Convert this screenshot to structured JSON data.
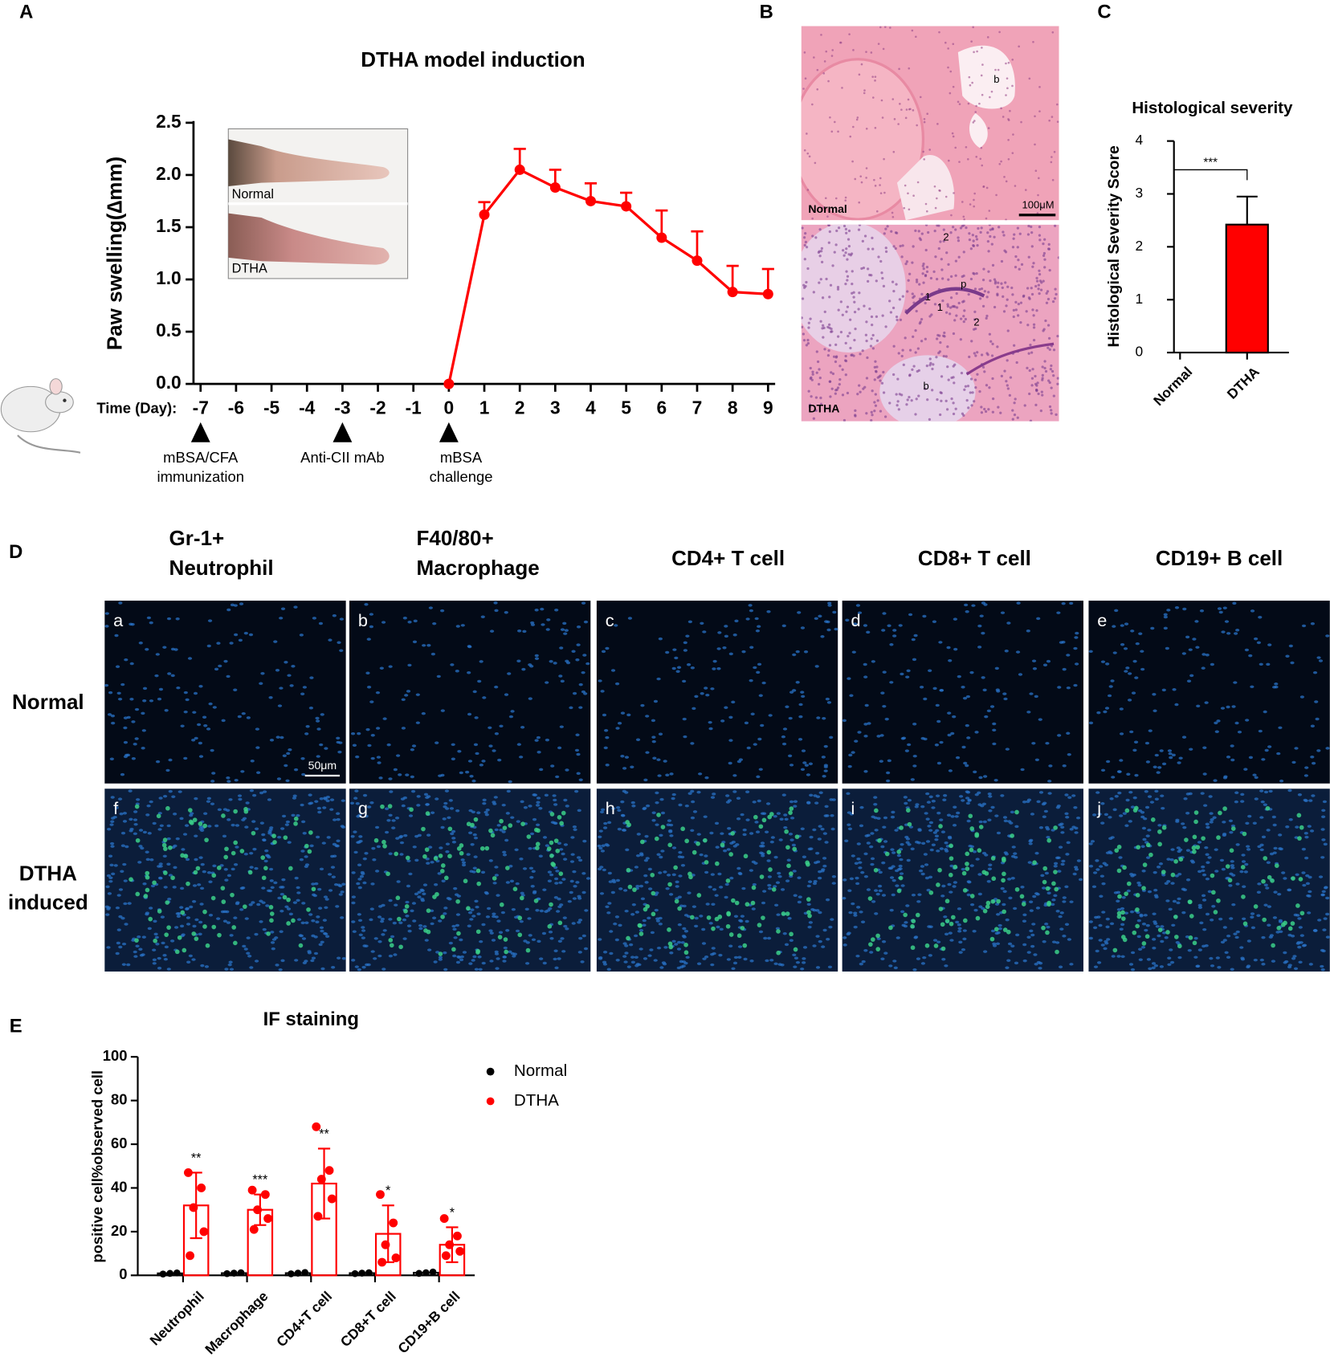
{
  "panels": [
    "A",
    "B",
    "C",
    "D",
    "E"
  ],
  "chart_data": [
    {
      "type": "line",
      "title": "DTHA model induction",
      "ylabel": "Paw swelling(∆mm)",
      "xlabel": "Time (Day):",
      "x": [
        -7,
        -6,
        -5,
        -4,
        -3,
        -2,
        -1,
        0,
        1,
        2,
        3,
        4,
        5,
        6,
        7,
        8,
        9
      ],
      "values": [
        null,
        null,
        null,
        null,
        null,
        null,
        null,
        0,
        1.62,
        2.05,
        1.88,
        1.75,
        1.7,
        1.4,
        1.18,
        0.88,
        0.86
      ],
      "errors": [
        null,
        null,
        null,
        null,
        null,
        null,
        null,
        null,
        0.12,
        0.2,
        0.17,
        0.17,
        0.13,
        0.26,
        0.28,
        0.25,
        0.24
      ],
      "color": "#ff0000",
      "xlim": [
        -7.2,
        9.2
      ],
      "xticks": [
        -7,
        -6,
        -5,
        -4,
        -3,
        -2,
        -1,
        0,
        1,
        2,
        3,
        4,
        5,
        6,
        7,
        8,
        9
      ],
      "ylim": [
        0,
        2.5
      ],
      "yticks": [
        {
          "value": 0,
          "label": "0.0"
        },
        0.5,
        {
          "value": 1,
          "label": "1.0"
        },
        1.5,
        {
          "value": 2,
          "label": "2.0"
        },
        2.5
      ],
      "annotations": [
        {
          "x": -7,
          "lines": [
            "mBSA/CFA",
            "immunization"
          ]
        },
        {
          "x": -3,
          "lines": [
            "Anti-CII mAb"
          ]
        },
        {
          "x": 0,
          "lines": [
            "mBSA",
            "challenge"
          ]
        }
      ],
      "inset_labels": [
        "Normal",
        "DTHA"
      ]
    },
    {
      "type": "bar",
      "title": "Histological severity",
      "ylabel": "Histological Severity Score",
      "categories": [
        "Normal",
        "DTHA"
      ],
      "values": [
        0,
        2.42
      ],
      "errors": [
        null,
        0.53
      ],
      "color": "#ff0000",
      "ylim": [
        0,
        4
      ],
      "yticks": [
        0,
        1,
        2,
        3,
        4
      ],
      "significance": "***"
    },
    {
      "type": "dotbar",
      "title": "IF staining",
      "ylabel": "positive cell%observed cell",
      "categories": [
        "Neutrophil",
        "Macrophage",
        "CD4+T cell",
        "CD8+T cell",
        "CD19+B cell"
      ],
      "series": [
        {
          "name": "Normal",
          "color": "#000000",
          "values": [
            0.9,
            1.0,
            1.0,
            1.0,
            1.2
          ],
          "points": [
            [
              0.6,
              0.9,
              1.1
            ],
            [
              0.8,
              1.0,
              1.2
            ],
            [
              0.7,
              1.0,
              1.3
            ],
            [
              0.8,
              1.0,
              1.2
            ],
            [
              0.9,
              1.2,
              1.5
            ]
          ]
        },
        {
          "name": "DTHA",
          "color": "#ff0000",
          "values": [
            32,
            30,
            42,
            19,
            14
          ],
          "errors": [
            15,
            7,
            16,
            13,
            8
          ],
          "points": [
            [
              47,
              40,
              31,
              20,
              9
            ],
            [
              39,
              37,
              30,
              26,
              21
            ],
            [
              68,
              48,
              44,
              35,
              27
            ],
            [
              37,
              24,
              14,
              8,
              6
            ],
            [
              26,
              18,
              14,
              11,
              9
            ]
          ]
        }
      ],
      "significance": [
        "**",
        "***",
        "**",
        "*",
        "*"
      ],
      "ylim": [
        0,
        100
      ],
      "yticks": [
        0,
        20,
        40,
        60,
        80,
        100
      ],
      "legend": "right"
    }
  ],
  "histology": {
    "top_label": "Normal",
    "scale_bar": "100μM",
    "top_marks": [
      "b"
    ],
    "bottom_label": "DTHA",
    "bottom_marks": [
      "2",
      "p",
      "1",
      "1",
      "2",
      "b"
    ]
  },
  "if_panels": {
    "columns": [
      [
        "Gr-1+",
        "Neutrophil"
      ],
      [
        "F40/80+",
        "Macrophage"
      ],
      [
        "CD4+ T cell"
      ],
      [
        "CD8+ T cell"
      ],
      [
        "CD19+ B cell"
      ]
    ],
    "rows": [
      [
        "Normal"
      ],
      [
        "DTHA",
        "induced"
      ]
    ],
    "letters": [
      "a",
      "b",
      "c",
      "d",
      "e",
      "f",
      "g",
      "h",
      "i",
      "j"
    ],
    "scale_bar": "50μm"
  }
}
